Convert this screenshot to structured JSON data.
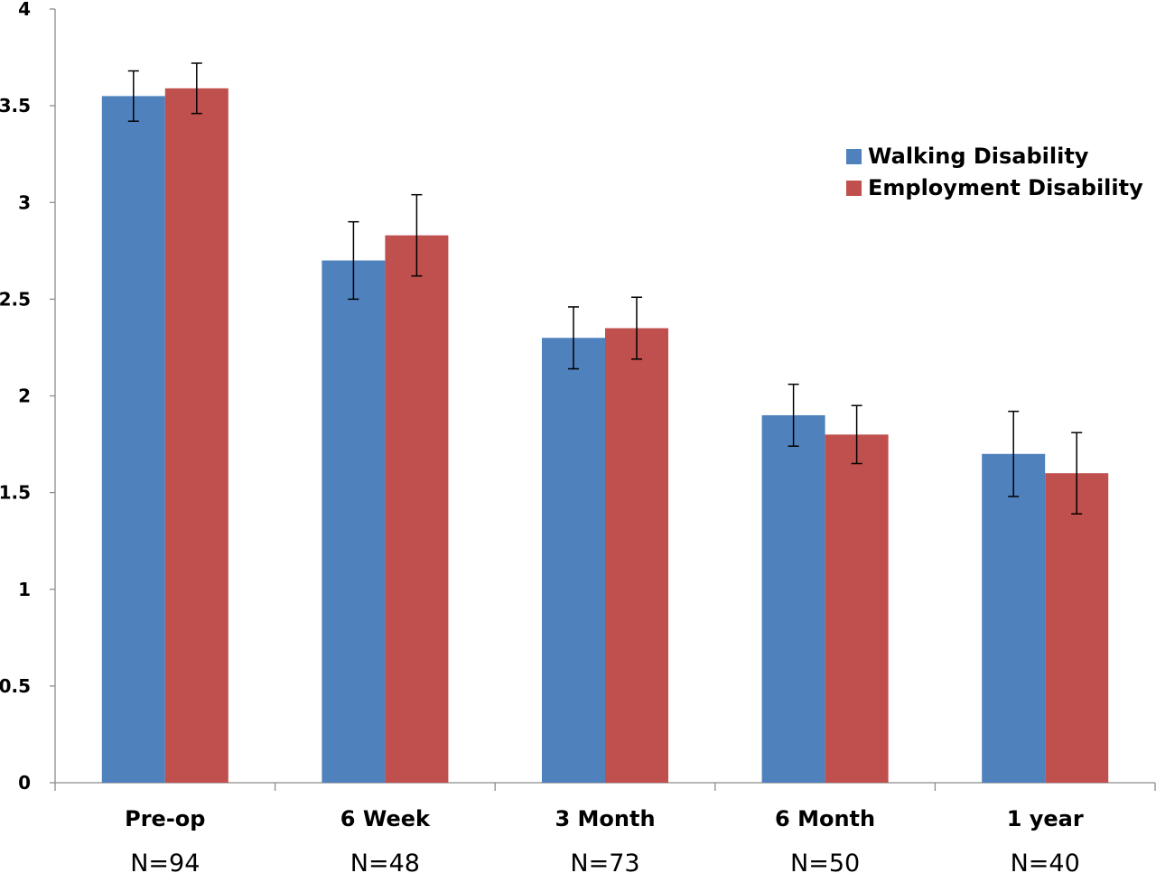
{
  "chart_data": {
    "type": "bar",
    "categories": [
      "Pre-op",
      "6 Week",
      "3 Month",
      "6 Month",
      "1 year"
    ],
    "sample_sizes": [
      "N=94",
      "N=48",
      "N=73",
      "N=50",
      "N=40"
    ],
    "series": [
      {
        "name": "Walking Disability",
        "color": "#4f81bd",
        "values": [
          3.55,
          2.7,
          2.3,
          1.9,
          1.7
        ],
        "err_low": [
          3.42,
          2.5,
          2.14,
          1.74,
          1.48
        ],
        "err_high": [
          3.68,
          2.9,
          2.46,
          2.06,
          1.92
        ]
      },
      {
        "name": "Employment Disability",
        "color": "#c0504d",
        "values": [
          3.59,
          2.83,
          2.35,
          1.8,
          1.6
        ],
        "err_low": [
          3.46,
          2.62,
          2.19,
          1.65,
          1.39
        ],
        "err_high": [
          3.72,
          3.04,
          2.51,
          1.95,
          1.81
        ]
      }
    ],
    "yticks": [
      "0",
      "0.5",
      "1",
      "1.5",
      "2",
      "2.5",
      "3",
      "3.5",
      "4"
    ],
    "ylim": [
      0,
      4
    ],
    "grid": false,
    "legend_position": "right"
  }
}
